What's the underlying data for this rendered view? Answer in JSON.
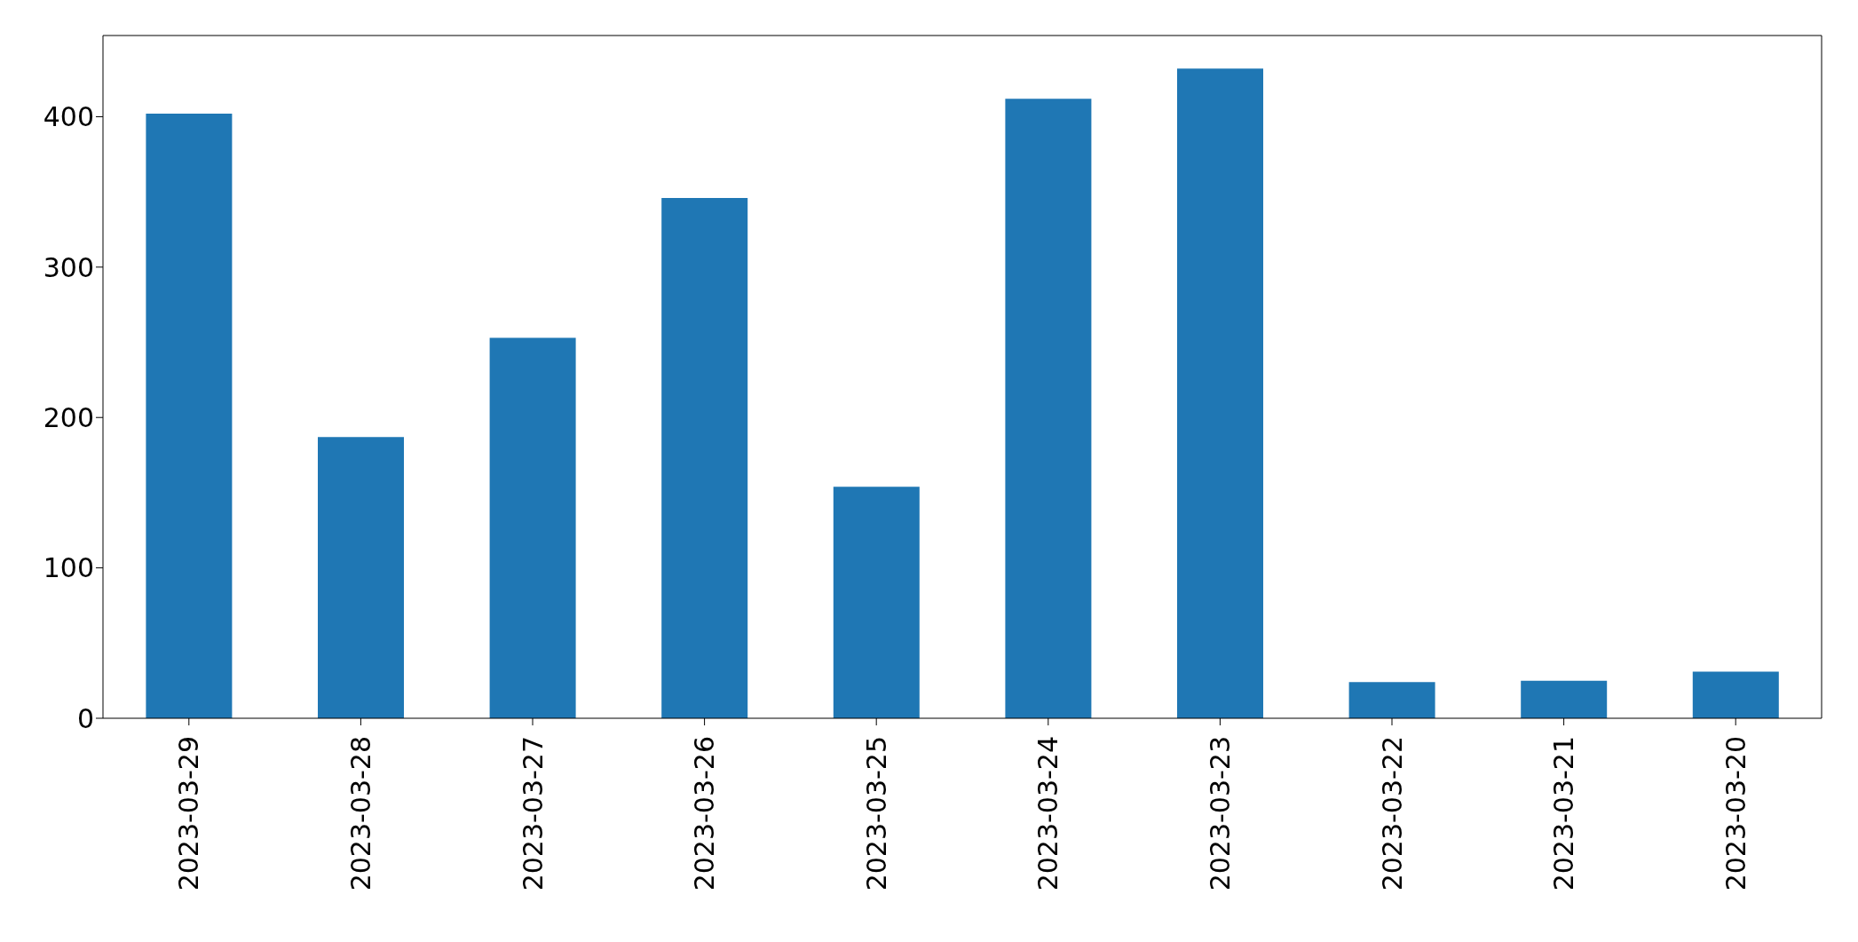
{
  "chart_data": {
    "type": "bar",
    "categories": [
      "2023-03-29",
      "2023-03-28",
      "2023-03-27",
      "2023-03-26",
      "2023-03-25",
      "2023-03-24",
      "2023-03-23",
      "2023-03-22",
      "2023-03-21",
      "2023-03-20"
    ],
    "values": [
      402,
      187,
      253,
      346,
      154,
      412,
      432,
      24,
      25,
      31
    ],
    "color": "#1f77b4",
    "ylim": [
      0,
      454
    ],
    "yticks": [
      0,
      100,
      200,
      300,
      400
    ],
    "grid": false
  }
}
